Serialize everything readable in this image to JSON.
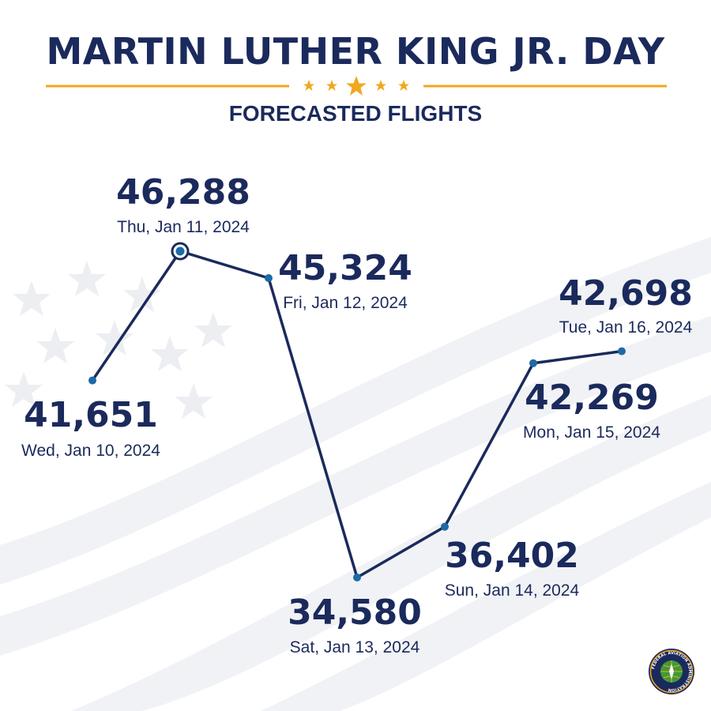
{
  "header": {
    "title": "MARTIN LUTHER KING JR. DAY",
    "subtitle": "FORECASTED FLIGHTS"
  },
  "colors": {
    "navy": "#1b2a5c",
    "gold": "#f0a81e",
    "point_blue": "#1c6aa6"
  },
  "seal": {
    "text": "FEDERAL AVIATION ADMINISTRATION"
  },
  "chart_data": {
    "type": "line",
    "x": [
      "Wed, Jan 10, 2024",
      "Thu, Jan 11, 2024",
      "Fri, Jan 12, 2024",
      "Sat, Jan 13, 2024",
      "Sun, Jan 14, 2024",
      "Mon, Jan 15, 2024",
      "Tue, Jan 16, 2024"
    ],
    "series": [
      {
        "values": [
          41651,
          46288,
          45324,
          34580,
          36402,
          42269,
          42698
        ],
        "labels": [
          "41,651",
          "46,288",
          "45,324",
          "34,580",
          "36,402",
          "42,269",
          "42,698"
        ]
      }
    ],
    "highlight_index": 1,
    "grid": false,
    "legend": "none"
  }
}
